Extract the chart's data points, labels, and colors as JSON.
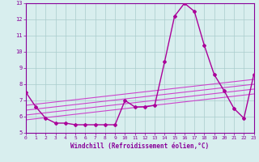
{
  "title": "",
  "xlabel": "Windchill (Refroidissement éolien,°C)",
  "ylabel": "",
  "xlim": [
    0,
    23
  ],
  "ylim": [
    5,
    13
  ],
  "yticks": [
    5,
    6,
    7,
    8,
    9,
    10,
    11,
    12,
    13
  ],
  "xticks": [
    0,
    1,
    2,
    3,
    4,
    5,
    6,
    7,
    8,
    9,
    10,
    11,
    12,
    13,
    14,
    15,
    16,
    17,
    18,
    19,
    20,
    21,
    22,
    23
  ],
  "background_color": "#d8eeee",
  "grid_color": "#aacccc",
  "text_color": "#880099",
  "series": [
    {
      "x": [
        0,
        1,
        2,
        3,
        4,
        5,
        6,
        7,
        8,
        9,
        10,
        11,
        12,
        13,
        14,
        15,
        16,
        17,
        18,
        19,
        20,
        21,
        22,
        23
      ],
      "y": [
        7.5,
        6.6,
        5.9,
        5.6,
        5.6,
        5.5,
        5.5,
        5.5,
        5.5,
        5.5,
        7.0,
        6.6,
        6.6,
        6.7,
        9.4,
        12.2,
        13.0,
        12.5,
        10.4,
        8.6,
        7.6,
        6.5,
        5.9,
        8.6
      ],
      "color": "#aa0099",
      "marker": "D",
      "markersize": 2.0,
      "linewidth": 1.0,
      "zorder": 4
    },
    {
      "x": [
        0,
        23
      ],
      "y": [
        6.7,
        8.3
      ],
      "color": "#cc44cc",
      "linewidth": 0.8,
      "zorder": 2
    },
    {
      "x": [
        0,
        23
      ],
      "y": [
        6.4,
        8.0
      ],
      "color": "#cc44cc",
      "linewidth": 0.8,
      "zorder": 2
    },
    {
      "x": [
        0,
        23
      ],
      "y": [
        6.1,
        7.7
      ],
      "color": "#cc44cc",
      "linewidth": 0.8,
      "zorder": 2
    },
    {
      "x": [
        0,
        23
      ],
      "y": [
        5.8,
        7.4
      ],
      "color": "#cc44cc",
      "linewidth": 0.8,
      "zorder": 2
    }
  ]
}
